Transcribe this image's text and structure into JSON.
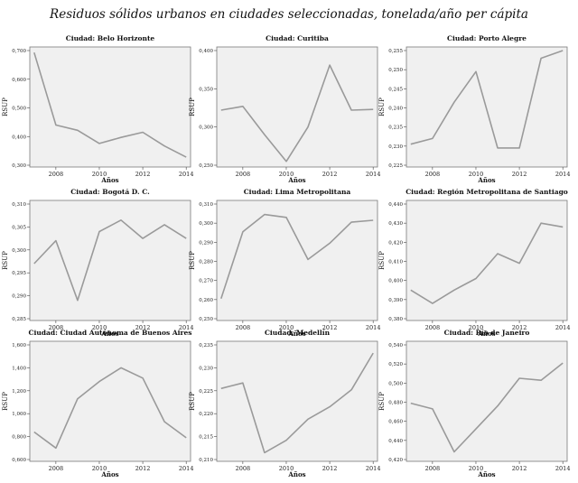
{
  "title": "Residuos sólidos urbanos en ciudades seleccionadas, tonelada/año per cápita",
  "colors": {
    "plot_bg": "#f0f0f0",
    "line": "#9a9a9a",
    "frame": "#7a7a7a"
  },
  "chart_data": [
    {
      "type": "line",
      "title": "Ciudad: Belo Horizonte",
      "xlabel": "Años",
      "ylabel": "RSUP",
      "x": [
        2007,
        2008,
        2009,
        2010,
        2011,
        2012,
        2013,
        2014
      ],
      "values": [
        0.693,
        0.44,
        0.422,
        0.376,
        0.397,
        0.415,
        0.367,
        0.328
      ],
      "ylim": [
        0.3,
        0.7
      ],
      "yticks": [
        "0,300",
        "0,400",
        "0,500",
        "0,600",
        "0,700"
      ],
      "ytick_values": [
        0.3,
        0.4,
        0.5,
        0.6,
        0.7
      ],
      "xticks": [
        "2008",
        "2010",
        "2012",
        "2014"
      ],
      "xtick_values": [
        2008,
        2010,
        2012,
        2014
      ]
    },
    {
      "type": "line",
      "title": "Ciudad: Curitiba",
      "xlabel": "Años",
      "ylabel": "RSUP",
      "x": [
        2007,
        2008,
        2009,
        2010,
        2011,
        2012,
        2013,
        2014
      ],
      "values": [
        0.322,
        0.327,
        0.29,
        0.255,
        0.3,
        0.381,
        0.322,
        0.323
      ],
      "ylim": [
        0.25,
        0.4
      ],
      "yticks": [
        "0,250",
        "0,300",
        "0,350",
        "0,400"
      ],
      "ytick_values": [
        0.25,
        0.3,
        0.35,
        0.4
      ],
      "xticks": [
        "2008",
        "2010",
        "2012",
        "2014"
      ],
      "xtick_values": [
        2008,
        2010,
        2012,
        2014
      ]
    },
    {
      "type": "line",
      "title": "Ciudad: Porto Alegre",
      "xlabel": "Años",
      "ylabel": "RSUP",
      "x": [
        2007,
        2008,
        2009,
        2010,
        2011,
        2012,
        2013,
        2014
      ],
      "values": [
        0.2305,
        0.232,
        0.2415,
        0.2495,
        0.2295,
        0.2295,
        0.253,
        0.255
      ],
      "ylim": [
        0.225,
        0.255
      ],
      "yticks": [
        "0,225",
        "0,230",
        "0,235",
        "0,240",
        "0,245",
        "0,250",
        "0,255"
      ],
      "ytick_values": [
        0.225,
        0.23,
        0.235,
        0.24,
        0.245,
        0.25,
        0.255
      ],
      "xticks": [
        "2008",
        "2010",
        "2012",
        "2014"
      ],
      "xtick_values": [
        2008,
        2010,
        2012,
        2014
      ]
    },
    {
      "type": "line",
      "title": "Ciudad: Bogotá D. C.",
      "xlabel": "Años",
      "ylabel": "RSUP",
      "x": [
        2007,
        2008,
        2009,
        2010,
        2011,
        2012,
        2013,
        2014
      ],
      "values": [
        0.297,
        0.302,
        0.289,
        0.304,
        0.3065,
        0.3025,
        0.3055,
        0.3025
      ],
      "ylim": [
        0.285,
        0.31
      ],
      "yticks": [
        "0,285",
        "0,290",
        "0,295",
        "0,300",
        "0,305",
        "0,310"
      ],
      "ytick_values": [
        0.285,
        0.29,
        0.295,
        0.3,
        0.305,
        0.31
      ],
      "xticks": [
        "2008",
        "2010",
        "2012",
        "2014"
      ],
      "xtick_values": [
        2008,
        2010,
        2012,
        2014
      ]
    },
    {
      "type": "line",
      "title": "Ciudad: Lima Metropolitana",
      "xlabel": "Años",
      "ylabel": "RSUP",
      "x": [
        2007,
        2008,
        2009,
        2010,
        2011,
        2012,
        2013,
        2014
      ],
      "values": [
        0.2605,
        0.2955,
        0.3045,
        0.303,
        0.281,
        0.2895,
        0.3005,
        0.3015
      ],
      "ylim": [
        0.25,
        0.31
      ],
      "yticks": [
        "0,250",
        "0,260",
        "0,270",
        "0,280",
        "0,290",
        "0,300",
        "0,310"
      ],
      "ytick_values": [
        0.25,
        0.26,
        0.27,
        0.28,
        0.29,
        0.3,
        0.31
      ],
      "xticks": [
        "2008",
        "2010",
        "2012",
        "2014"
      ],
      "xtick_values": [
        2008,
        2010,
        2012,
        2014
      ]
    },
    {
      "type": "line",
      "title": "Ciudad: Región Metropolitana de Santiago",
      "xlabel": "Años",
      "ylabel": "RSUP",
      "x": [
        2007,
        2008,
        2009,
        2010,
        2011,
        2012,
        2013,
        2014
      ],
      "values": [
        0.395,
        0.388,
        0.395,
        0.401,
        0.414,
        0.409,
        0.43,
        0.428
      ],
      "ylim": [
        0.38,
        0.44
      ],
      "yticks": [
        "0,380",
        "0,390",
        "0,400",
        "0,410",
        "0,420",
        "0,430",
        "0,440"
      ],
      "ytick_values": [
        0.38,
        0.39,
        0.4,
        0.41,
        0.42,
        0.43,
        0.44
      ],
      "xticks": [
        "2008",
        "2010",
        "2012",
        "2014"
      ],
      "xtick_values": [
        2008,
        2010,
        2012,
        2014
      ]
    },
    {
      "type": "line",
      "title": "Ciudad: Ciudad Autónoma de Buenos Aires",
      "xlabel": "Años",
      "ylabel": "RSUP",
      "x": [
        2007,
        2008,
        2009,
        2010,
        2011,
        2012,
        2013,
        2014
      ],
      "values": [
        0.84,
        0.7,
        1.13,
        1.28,
        1.4,
        1.31,
        0.93,
        0.79
      ],
      "ylim": [
        0.6,
        1.6
      ],
      "yticks": [
        "0,600",
        "0,800",
        "1,000",
        "1,200",
        "1,400",
        "1,600"
      ],
      "ytick_values": [
        0.6,
        0.8,
        1.0,
        1.2,
        1.4,
        1.6
      ],
      "xticks": [
        "2008",
        "2010",
        "2012",
        "2014"
      ],
      "xtick_values": [
        2008,
        2010,
        2012,
        2014
      ]
    },
    {
      "type": "line",
      "title": "Ciudad: Medellín",
      "xlabel": "Años",
      "ylabel": "RSUP",
      "x": [
        2007,
        2008,
        2009,
        2010,
        2011,
        2012,
        2013,
        2014
      ],
      "values": [
        0.2255,
        0.2267,
        0.2115,
        0.2142,
        0.2188,
        0.2215,
        0.2252,
        0.2332
      ],
      "ylim": [
        0.21,
        0.235
      ],
      "yticks": [
        "0,210",
        "0,215",
        "0,220",
        "0,225",
        "0,230",
        "0,235"
      ],
      "ytick_values": [
        0.21,
        0.215,
        0.22,
        0.225,
        0.23,
        0.235
      ],
      "xticks": [
        "2008",
        "2010",
        "2012",
        "2014"
      ],
      "xtick_values": [
        2008,
        2010,
        2012,
        2014
      ]
    },
    {
      "type": "line",
      "title": "Ciudad: Río de Janeiro",
      "xlabel": "Años",
      "ylabel": "RSUP",
      "x": [
        2007,
        2008,
        2009,
        2010,
        2011,
        2012,
        2013,
        2014
      ],
      "values": [
        0.479,
        0.473,
        0.428,
        0.452,
        0.476,
        0.505,
        0.503,
        0.521
      ],
      "ylim": [
        0.42,
        0.54
      ],
      "yticks": [
        "0,420",
        "0,440",
        "0,460",
        "0,480",
        "0,500",
        "0,520",
        "0,540"
      ],
      "ytick_values": [
        0.42,
        0.44,
        0.46,
        0.48,
        0.5,
        0.52,
        0.54
      ],
      "xticks": [
        "2008",
        "2010",
        "2012",
        "2014"
      ],
      "xtick_values": [
        2008,
        2010,
        2012,
        2014
      ]
    }
  ]
}
